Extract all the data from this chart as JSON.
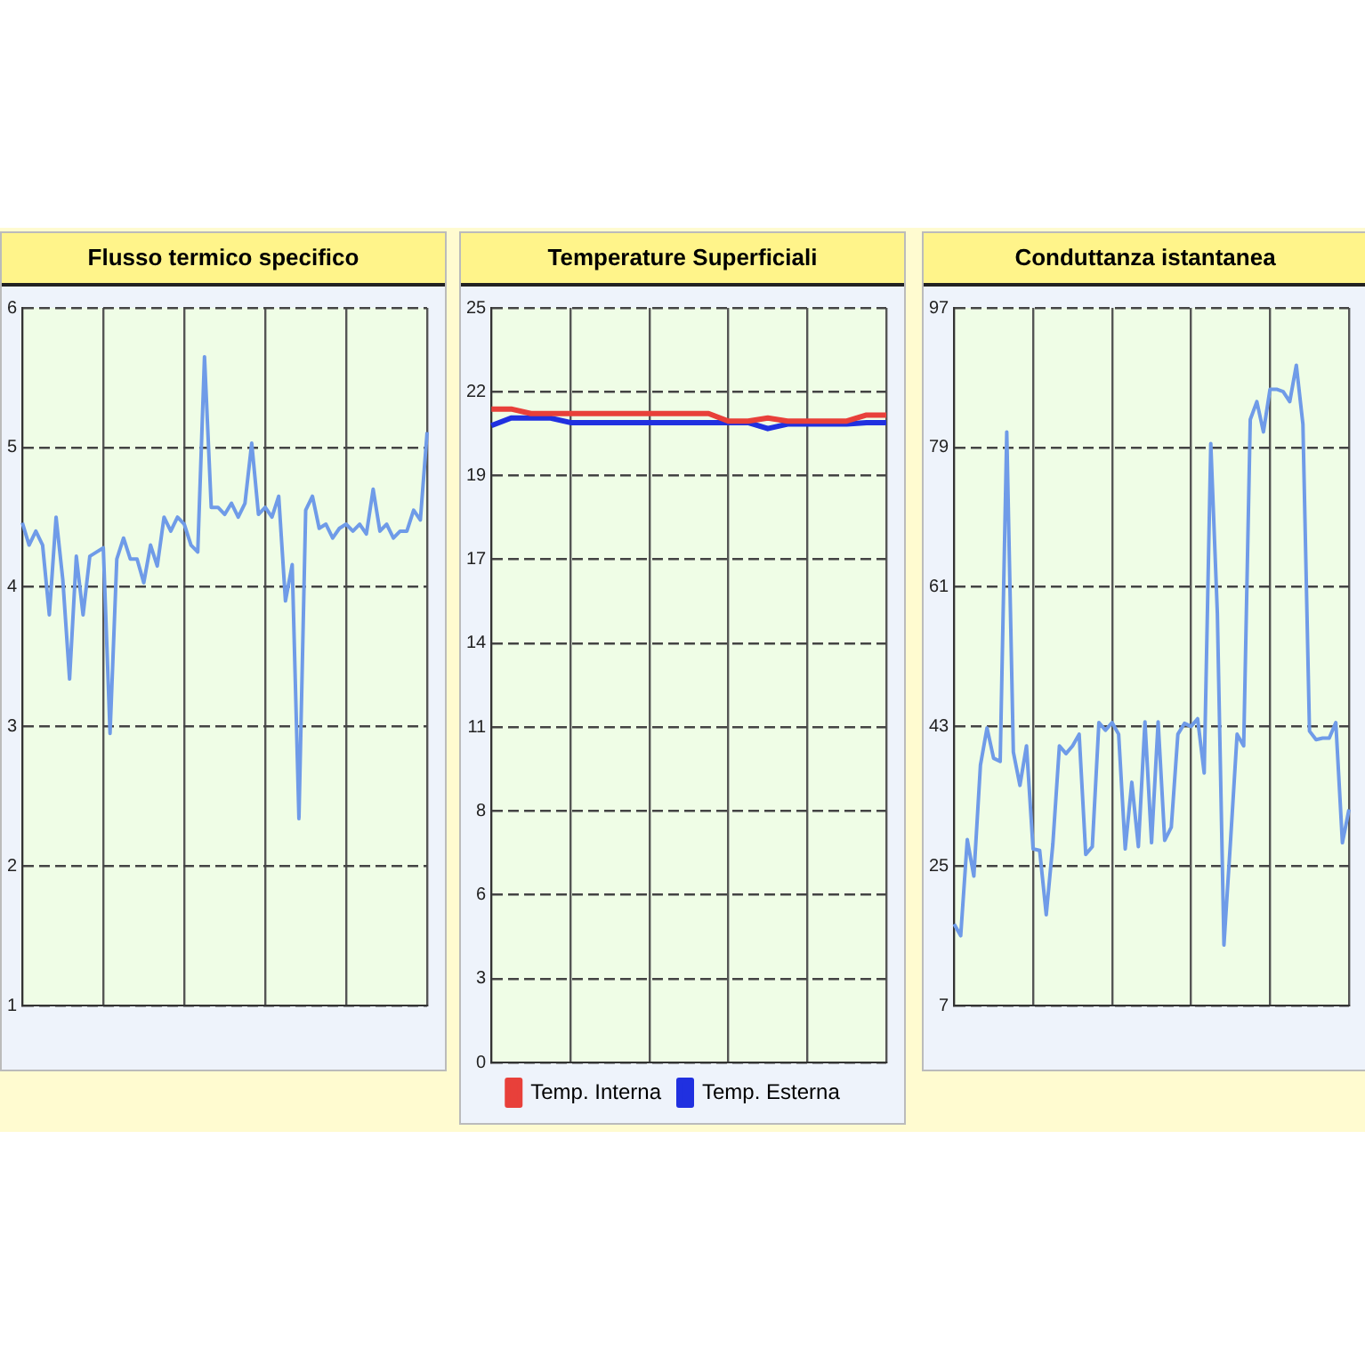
{
  "chart_data": [
    {
      "type": "line",
      "title": "Flusso termico specifico",
      "categories": [
        null,
        null,
        null,
        null,
        null,
        null,
        null,
        null,
        null,
        null,
        null,
        null,
        null,
        null,
        null,
        null,
        null,
        null,
        null,
        null,
        null,
        null,
        null,
        null,
        null,
        null,
        null,
        null,
        null,
        null,
        null,
        null,
        null,
        null,
        null,
        null,
        null,
        null,
        null,
        null,
        null,
        null,
        null,
        null,
        null,
        null,
        null,
        null,
        null,
        null,
        null,
        null,
        null,
        null,
        null,
        null,
        null,
        null,
        null,
        null,
        null
      ],
      "series": [
        {
          "color": "#6f9be8",
          "values": [
            4.46,
            4.3,
            4.4,
            4.3,
            3.8,
            4.5,
            4.05,
            3.34,
            4.22,
            3.8,
            4.22,
            4.25,
            4.28,
            2.95,
            4.2,
            4.35,
            4.2,
            4.2,
            4.03,
            4.3,
            4.15,
            4.5,
            4.4,
            4.5,
            4.45,
            4.3,
            4.25,
            5.65,
            4.57,
            4.57,
            4.52,
            4.6,
            4.5,
            4.6,
            5.03,
            4.52,
            4.57,
            4.5,
            4.65,
            3.9,
            4.16,
            2.34,
            4.55,
            4.65,
            4.42,
            4.45,
            4.35,
            4.42,
            4.45,
            4.4,
            4.45,
            4.38,
            4.7,
            4.4,
            4.45,
            4.35,
            4.4,
            4.4,
            4.55,
            4.48,
            5.11
          ]
        }
      ],
      "ylim": [
        1,
        6
      ],
      "yticks": [
        1,
        2,
        3,
        4,
        5,
        6
      ],
      "grid": true,
      "legend": false,
      "tick_labels": "y",
      "marker": "none",
      "line_style": "solid"
    },
    {
      "type": "line",
      "title": "Temperature Superficiali",
      "categories": [
        null,
        null,
        null,
        null,
        null,
        null,
        null,
        null,
        null,
        null,
        null,
        null,
        null,
        null,
        null,
        null,
        null,
        null,
        null,
        null,
        null
      ],
      "series": [
        {
          "name": "Temp. Interna",
          "color": "#e8403a",
          "values": [
            21.65,
            21.65,
            21.5,
            21.5,
            21.5,
            21.5,
            21.5,
            21.5,
            21.5,
            21.5,
            21.5,
            21.5,
            21.25,
            21.25,
            21.35,
            21.25,
            21.25,
            21.25,
            21.25,
            21.45,
            21.45
          ]
        },
        {
          "name": "Temp. Esterna",
          "color": "#2030e0",
          "values": [
            21.1,
            21.35,
            21.35,
            21.35,
            21.2,
            21.2,
            21.2,
            21.2,
            21.2,
            21.2,
            21.2,
            21.2,
            21.2,
            21.2,
            21.0,
            21.15,
            21.15,
            21.15,
            21.15,
            21.2,
            21.2
          ]
        }
      ],
      "ylim": [
        0,
        25
      ],
      "yticks": [
        {
          "value": 0,
          "label": "0"
        },
        {
          "value": 2.7778,
          "label": "3"
        },
        {
          "value": 5.5556,
          "label": "6"
        },
        {
          "value": 8.3333,
          "label": "8"
        },
        {
          "value": 11.1111,
          "label": "11"
        },
        {
          "value": 13.8889,
          "label": "14"
        },
        {
          "value": 16.6667,
          "label": "17"
        },
        {
          "value": 19.4444,
          "label": "19"
        },
        {
          "value": 22.2222,
          "label": "22"
        },
        {
          "value": 25,
          "label": "25"
        }
      ],
      "grid": true,
      "legend": "bottom",
      "tick_labels": "y",
      "marker": "none",
      "line_style": "solid"
    },
    {
      "type": "line",
      "title": "Conduttanza istantanea",
      "categories": [
        null,
        null,
        null,
        null,
        null,
        null,
        null,
        null,
        null,
        null,
        null,
        null,
        null,
        null,
        null,
        null,
        null,
        null,
        null,
        null,
        null,
        null,
        null,
        null,
        null,
        null,
        null,
        null,
        null,
        null,
        null,
        null,
        null,
        null,
        null,
        null,
        null,
        null,
        null,
        null,
        null,
        null,
        null,
        null,
        null,
        null,
        null,
        null,
        null,
        null,
        null,
        null,
        null,
        null,
        null,
        null,
        null,
        null,
        null,
        null,
        null
      ],
      "series": [
        {
          "color": "#6f9be8",
          "values": [
            17.5,
            16,
            28.4,
            23.7,
            38,
            42.8,
            38.9,
            38.5,
            81,
            39.7,
            35.4,
            40.5,
            27.2,
            27,
            18.7,
            27.8,
            40.5,
            39.5,
            40.5,
            42,
            26.5,
            27.5,
            43.5,
            42.5,
            43.5,
            42,
            27.2,
            35.8,
            27.5,
            43.6,
            28,
            43.6,
            28.3,
            30,
            42,
            43.4,
            43,
            44,
            37,
            79.5,
            57.6,
            14.8,
            28.2,
            42,
            40.5,
            82.6,
            84.9,
            81,
            86.5,
            86.5,
            86.2,
            84.9,
            89.6,
            82,
            42.4,
            41.3,
            41.5,
            41.5,
            43.5,
            28,
            32.3
          ]
        }
      ],
      "ylim": [
        7,
        97
      ],
      "yticks": [
        7,
        25,
        43,
        61,
        79,
        97
      ],
      "grid": true,
      "legend": false,
      "tick_labels": "y",
      "marker": "none",
      "line_style": "solid"
    }
  ]
}
